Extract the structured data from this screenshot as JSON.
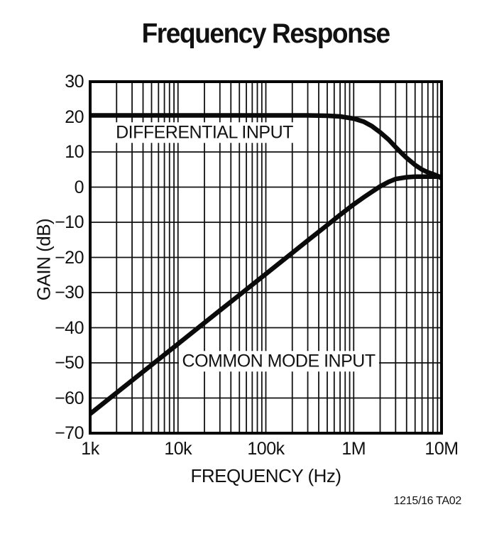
{
  "title": "Frequency Response",
  "caption": "1215/16 TA02",
  "colors": {
    "background": "#ffffff",
    "grid": "#111111",
    "frame": "#000000",
    "curve": "#0a0a0a",
    "text": "#111111"
  },
  "chart_data": {
    "type": "line",
    "title": "Frequency Response",
    "xlabel": "FREQUENCY (Hz)",
    "ylabel": "GAIN (dB)",
    "x_scale": "log",
    "xlim": [
      1000,
      10000000
    ],
    "ylim": [
      -70,
      30
    ],
    "grid": "log minor gridlines on, 10 dB major horizontal lines",
    "legend_position": "inline annotations",
    "x_ticks": [
      {
        "f": 1000,
        "label": "1k"
      },
      {
        "f": 10000,
        "label": "10k"
      },
      {
        "f": 100000,
        "label": "100k"
      },
      {
        "f": 1000000,
        "label": "1M"
      },
      {
        "f": 10000000,
        "label": "10M"
      }
    ],
    "y_ticks": [
      {
        "db": 30,
        "label": "30"
      },
      {
        "db": 20,
        "label": "20"
      },
      {
        "db": 10,
        "label": "10"
      },
      {
        "db": 0,
        "label": "0"
      },
      {
        "db": -10,
        "label": "−10"
      },
      {
        "db": -20,
        "label": "−20"
      },
      {
        "db": -30,
        "label": "−30"
      },
      {
        "db": -40,
        "label": "−40"
      },
      {
        "db": -50,
        "label": "−50"
      },
      {
        "db": -60,
        "label": "−60"
      },
      {
        "db": -70,
        "label": "−70"
      }
    ],
    "series": [
      {
        "name": "DIFFERENTIAL INPUT",
        "points": [
          [
            1000,
            20.4
          ],
          [
            2000,
            20.4
          ],
          [
            5000,
            20.4
          ],
          [
            10000,
            20.4
          ],
          [
            20000,
            20.4
          ],
          [
            50000,
            20.4
          ],
          [
            100000,
            20.4
          ],
          [
            200000,
            20.4
          ],
          [
            300000,
            20.4
          ],
          [
            500000,
            20.3
          ],
          [
            700000,
            20.1
          ],
          [
            1000000,
            19.5
          ],
          [
            1300000,
            18.6
          ],
          [
            1600000,
            17.4
          ],
          [
            2000000,
            15.6
          ],
          [
            2500000,
            13.5
          ],
          [
            3000000,
            11.4
          ],
          [
            3500000,
            9.7
          ],
          [
            4000000,
            8.3
          ],
          [
            5000000,
            6.3
          ],
          [
            6000000,
            5.0
          ],
          [
            7000000,
            4.2
          ],
          [
            8000000,
            3.7
          ],
          [
            9000000,
            3.2
          ],
          [
            10000000,
            2.5
          ]
        ]
      },
      {
        "name": "COMMON MODE INPUT",
        "points": [
          [
            1000,
            -64.5
          ],
          [
            2000,
            -58.5
          ],
          [
            3000,
            -55.0
          ],
          [
            5000,
            -50.6
          ],
          [
            7000,
            -47.7
          ],
          [
            10000,
            -44.6
          ],
          [
            20000,
            -38.6
          ],
          [
            30000,
            -35.1
          ],
          [
            50000,
            -30.7
          ],
          [
            70000,
            -27.8
          ],
          [
            100000,
            -24.7
          ],
          [
            200000,
            -18.7
          ],
          [
            300000,
            -15.2
          ],
          [
            500000,
            -10.8
          ],
          [
            700000,
            -7.9
          ],
          [
            1000000,
            -4.9
          ],
          [
            1300000,
            -2.9
          ],
          [
            1600000,
            -1.4
          ],
          [
            2000000,
            0.2
          ],
          [
            2500000,
            1.5
          ],
          [
            3000000,
            2.3
          ],
          [
            4000000,
            2.8
          ],
          [
            5000000,
            3.0
          ],
          [
            6000000,
            3.0
          ],
          [
            8000000,
            3.0
          ],
          [
            10000000,
            3.0
          ]
        ]
      }
    ],
    "annotations": [
      {
        "text": "DIFFERENTIAL INPUT",
        "f": 20000,
        "db": 15.5
      },
      {
        "text": "COMMON MODE INPUT",
        "f": 140000,
        "db": -49.5
      }
    ]
  }
}
